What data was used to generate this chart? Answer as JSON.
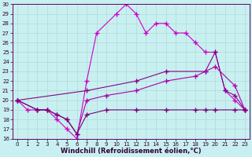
{
  "xlabel": "Windchill (Refroidissement éolien,°C)",
  "xlim": [
    -0.5,
    23.5
  ],
  "ylim": [
    16,
    30
  ],
  "xticks": [
    0,
    1,
    2,
    3,
    4,
    5,
    6,
    7,
    8,
    9,
    10,
    11,
    12,
    13,
    14,
    15,
    16,
    17,
    18,
    19,
    20,
    21,
    22,
    23
  ],
  "yticks": [
    16,
    17,
    18,
    19,
    20,
    21,
    22,
    23,
    24,
    25,
    26,
    27,
    28,
    29,
    30
  ],
  "bg_color": "#c8f0f0",
  "grid_color": "#b0d8d8",
  "line1_color": "#cc00cc",
  "line2_color": "#880088",
  "line3_color": "#aa00aa",
  "line4_color": "#770077",
  "line1_x": [
    0,
    1,
    2,
    3,
    4,
    5,
    6,
    7,
    8,
    10,
    11,
    12,
    13,
    14,
    15,
    16,
    17,
    18,
    19,
    20,
    21,
    22,
    23
  ],
  "line1_y": [
    20,
    19,
    19,
    19,
    18,
    17,
    16,
    22,
    27,
    29,
    30,
    29,
    27,
    28,
    28,
    27,
    27,
    26,
    25,
    25,
    21,
    20,
    19
  ],
  "line2_x": [
    0,
    7,
    12,
    15,
    19,
    20,
    21,
    22,
    23
  ],
  "line2_y": [
    20,
    21,
    22,
    23,
    23,
    25,
    21,
    20.5,
    19
  ],
  "line3_x": [
    0,
    2,
    3,
    4,
    5,
    6,
    7,
    9,
    12,
    15,
    18,
    19,
    20,
    22,
    23
  ],
  "line3_y": [
    20,
    19,
    19,
    18.5,
    18,
    16.5,
    20,
    20.5,
    21,
    22,
    22.5,
    23,
    23.5,
    21.5,
    19
  ],
  "line4_x": [
    0,
    2,
    3,
    4,
    5,
    6,
    7,
    9,
    12,
    15,
    18,
    19,
    20,
    22,
    23
  ],
  "line4_y": [
    20,
    19,
    19,
    18.5,
    18,
    16.5,
    18.5,
    19,
    19,
    19,
    19,
    19,
    19,
    19,
    19
  ],
  "marker": "+",
  "marker_size": 4,
  "line_width": 0.8,
  "tick_fontsize": 5,
  "xlabel_fontsize": 6
}
